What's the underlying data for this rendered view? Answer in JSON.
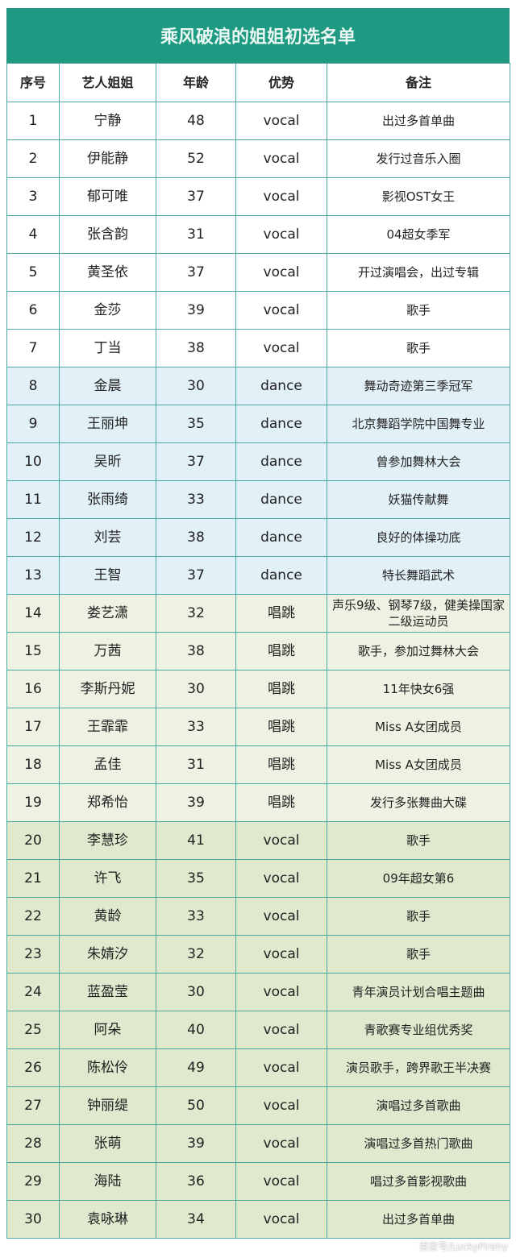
{
  "title": "乘风破浪的姐姐初选名单",
  "headers": [
    "序号",
    "艺人姐姐",
    "年龄",
    "优势",
    "备注"
  ],
  "rows": [
    [
      "1",
      "宁静",
      "48",
      "vocal",
      "出过多首单曲"
    ],
    [
      "2",
      "伊能静",
      "52",
      "vocal",
      "发行过音乐入圈"
    ],
    [
      "3",
      "郁可唯",
      "37",
      "vocal",
      "影视OST女王"
    ],
    [
      "4",
      "张含韵",
      "31",
      "vocal",
      "04超女季军"
    ],
    [
      "5",
      "黄圣依",
      "37",
      "vocal",
      "开过演唱会，出过专辑"
    ],
    [
      "6",
      "金莎",
      "39",
      "vocal",
      "歌手"
    ],
    [
      "7",
      "丁当",
      "38",
      "vocal",
      "歌手"
    ],
    [
      "8",
      "金晨",
      "30",
      "dance",
      "舞动奇迹第三季冠军"
    ],
    [
      "9",
      "王丽坤",
      "35",
      "dance",
      "北京舞蹈学院中国舞专业"
    ],
    [
      "10",
      "吴昕",
      "37",
      "dance",
      "曾参加舞林大会"
    ],
    [
      "11",
      "张雨绮",
      "33",
      "dance",
      "妖猫传献舞"
    ],
    [
      "12",
      "刘芸",
      "38",
      "dance",
      "良好的体操功底"
    ],
    [
      "13",
      "王智",
      "37",
      "dance",
      "特长舞蹈武术"
    ],
    [
      "14",
      "娄艺潇",
      "32",
      "唱跳",
      "声乐9级、钢琴7级，健美操国家二级运动员"
    ],
    [
      "15",
      "万茜",
      "38",
      "唱跳",
      "歌手，参加过舞林大会"
    ],
    [
      "16",
      "李斯丹妮",
      "30",
      "唱跳",
      "11年快女6强"
    ],
    [
      "17",
      "王霏霏",
      "33",
      "唱跳",
      "Miss A女团成员"
    ],
    [
      "18",
      "孟佳",
      "31",
      "唱跳",
      "Miss A女团成员"
    ],
    [
      "19",
      "郑希怡",
      "39",
      "唱跳",
      "发行多张舞曲大碟"
    ],
    [
      "20",
      "李慧珍",
      "41",
      "vocal",
      "歌手"
    ],
    [
      "21",
      "许飞",
      "35",
      "vocal",
      "09年超女第6"
    ],
    [
      "22",
      "黄龄",
      "33",
      "vocal",
      "歌手"
    ],
    [
      "23",
      "朱婧汐",
      "32",
      "vocal",
      "歌手"
    ],
    [
      "24",
      "蓝盈莹",
      "30",
      "vocal",
      "青年演员计划合唱主题曲"
    ],
    [
      "25",
      "阿朵",
      "40",
      "vocal",
      "青歌赛专业组优秀奖"
    ],
    [
      "26",
      "陈松伶",
      "49",
      "vocal",
      "演员歌手，跨界歌王半决赛"
    ],
    [
      "27",
      "钟丽缇",
      "50",
      "vocal",
      "演唱过多首歌曲"
    ],
    [
      "28",
      "张萌",
      "39",
      "vocal",
      "演唱过多首热门歌曲"
    ],
    [
      "29",
      "海陆",
      "36",
      "vocal",
      "唱过多首影视歌曲"
    ],
    [
      "30",
      "袁咏琳",
      "34",
      "vocal",
      "出过多首单曲"
    ]
  ],
  "colors": {
    "title_bg": "#1e9a82",
    "border": "#4aa9a0",
    "group_vocal1": "#ffffff",
    "group_dance": "#e2f0f7",
    "group_changtiao": "#eef2e3",
    "group_vocal2": "#dfe9cd"
  },
  "watermark": "百家号/LuckyFirehy"
}
